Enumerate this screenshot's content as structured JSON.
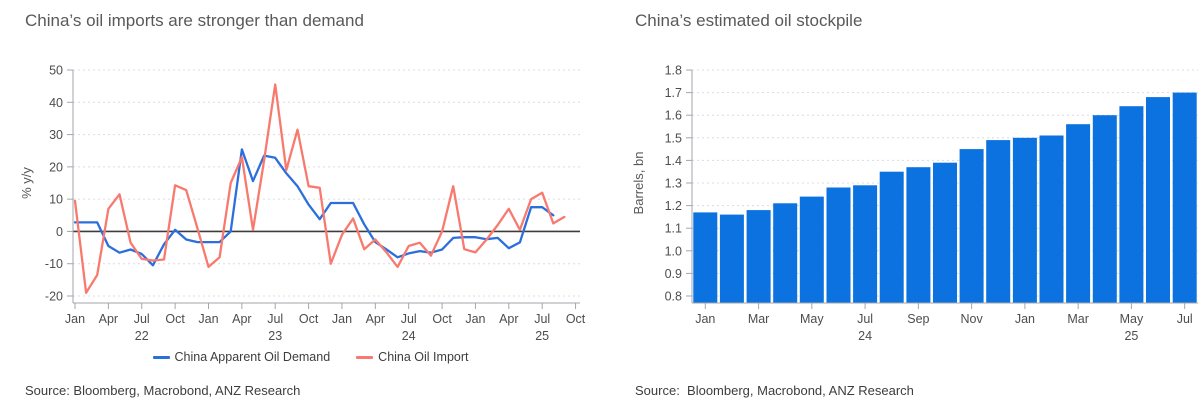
{
  "colors": {
    "demand_blue": "#2b6fdd",
    "import_red": "#f87a6f",
    "bar_blue": "#0b72df",
    "title_gray": "#595959",
    "tick_gray": "#4d4d4d",
    "axis_gray": "#a2a6ad",
    "grid_gray": "#d9dce2",
    "zero_line": "#3d3d3d"
  },
  "chart_data": [
    {
      "id": "oil_demand_vs_imports",
      "type": "line",
      "title": "China’s oil imports are stronger than demand",
      "ylabel": "% y/y",
      "ylim": [
        -20,
        50
      ],
      "yticks": [
        50,
        40,
        30,
        20,
        10,
        0,
        -10,
        -20
      ],
      "grid": "dotted-horizontal",
      "legend_position": "bottom",
      "x_unit": "month",
      "x_start": "Jan 2022",
      "x_slots": 46,
      "xticks": [
        {
          "i": 0,
          "label": "Jan"
        },
        {
          "i": 3,
          "label": "Apr"
        },
        {
          "i": 6,
          "label": "Jul",
          "year": "22"
        },
        {
          "i": 9,
          "label": "Oct"
        },
        {
          "i": 12,
          "label": "Jan"
        },
        {
          "i": 15,
          "label": "Apr"
        },
        {
          "i": 18,
          "label": "Jul",
          "year": "23"
        },
        {
          "i": 21,
          "label": "Oct"
        },
        {
          "i": 24,
          "label": "Jan"
        },
        {
          "i": 27,
          "label": "Apr"
        },
        {
          "i": 30,
          "label": "Jul",
          "year": "24"
        },
        {
          "i": 33,
          "label": "Oct"
        },
        {
          "i": 36,
          "label": "Jan"
        },
        {
          "i": 39,
          "label": "Apr"
        },
        {
          "i": 42,
          "label": "Jul",
          "year": "25"
        },
        {
          "i": 45,
          "label": "Oct"
        }
      ],
      "series": [
        {
          "name": "China Apparent Oil Demand",
          "color": "#2b6fdd",
          "values": [
            2.8,
            2.8,
            2.8,
            -4.5,
            -6.6,
            -5.6,
            -7,
            -10.5,
            -4,
            0.5,
            -2.5,
            -3.3,
            -3.3,
            -3.3,
            0,
            25.4,
            15.6,
            23.5,
            22.8,
            18,
            14,
            8.3,
            3.8,
            8.8,
            8.8,
            8.8,
            2.2,
            -3.3,
            -5.6,
            -8,
            -6.8,
            -6.1,
            -6.6,
            -5.6,
            -2,
            -1.8,
            -1.8,
            -2.4,
            -2,
            -5.2,
            -3.4,
            7.5,
            7.5,
            5
          ]
        },
        {
          "name": "China Oil Import",
          "color": "#f87a6f",
          "values": [
            9.5,
            -19,
            -13.5,
            7,
            11.5,
            -3.5,
            -8.5,
            -9,
            -8.7,
            14.3,
            12.8,
            1,
            -11,
            -8,
            15,
            23,
            0.5,
            22,
            45.5,
            19,
            31.5,
            14,
            13.5,
            -10,
            -1,
            4,
            -5.5,
            -2.5,
            -6.5,
            -11,
            -4.5,
            -3.5,
            -7.5,
            0,
            14,
            -5.5,
            -6.5,
            -2.5,
            2,
            7,
            0.5,
            10,
            12,
            2.5,
            4.5
          ]
        }
      ],
      "source": "Source: Bloomberg, Macrobond, ANZ Research"
    },
    {
      "id": "oil_stockpile",
      "type": "bar",
      "title": "China’s estimated oil stockpile",
      "ylabel": "Barrels, bn",
      "ylim": [
        0.8,
        1.8
      ],
      "yticks": [
        1.8,
        1.7,
        1.6,
        1.5,
        1.4,
        1.3,
        1.2,
        1.1,
        1.0,
        0.9,
        0.8
      ],
      "grid": "dotted-horizontal",
      "bar_color": "#0b72df",
      "categories": [
        "Jan 24",
        "Feb 24",
        "Mar 24",
        "Apr 24",
        "May 24",
        "Jun 24",
        "Jul 24",
        "Aug 24",
        "Sep 24",
        "Oct 24",
        "Nov 24",
        "Dec 24",
        "Jan 25",
        "Feb 25",
        "Mar 25",
        "Apr 25",
        "May 25",
        "Jun 25",
        "Jul 25"
      ],
      "values": [
        1.17,
        1.16,
        1.18,
        1.21,
        1.24,
        1.28,
        1.29,
        1.35,
        1.37,
        1.39,
        1.45,
        1.49,
        1.5,
        1.51,
        1.56,
        1.6,
        1.64,
        1.68,
        1.7
      ],
      "xticks": [
        {
          "i": 0,
          "label": "Jan"
        },
        {
          "i": 2,
          "label": "Mar"
        },
        {
          "i": 4,
          "label": "May"
        },
        {
          "i": 6,
          "label": "Jul",
          "year": "24"
        },
        {
          "i": 8,
          "label": "Sep"
        },
        {
          "i": 10,
          "label": "Nov"
        },
        {
          "i": 12,
          "label": "Jan"
        },
        {
          "i": 14,
          "label": "Mar"
        },
        {
          "i": 16,
          "label": "May",
          "year": "25"
        },
        {
          "i": 18,
          "label": "Jul"
        }
      ],
      "source": "Source:  Bloomberg, Macrobond, ANZ Research"
    }
  ]
}
